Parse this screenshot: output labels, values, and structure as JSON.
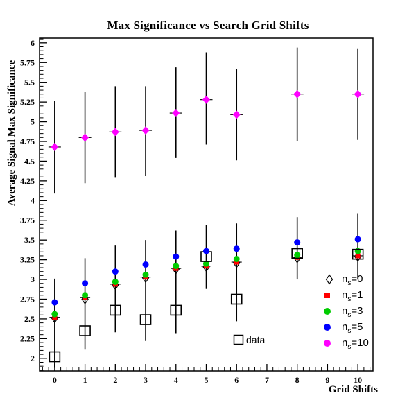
{
  "chart_data": {
    "type": "scatter",
    "title": "Max Significance vs Search Grid Shifts",
    "xlabel": "Grid Shifts",
    "ylabel": "Average Signal Max Significance",
    "xlim": [
      -0.5,
      10.5
    ],
    "ylim": [
      1.84,
      6.06
    ],
    "x_major_ticks": [
      0,
      1,
      2,
      3,
      4,
      5,
      6,
      7,
      8,
      9,
      10
    ],
    "x_minor_step": 0.2,
    "y_major_min": 2,
    "y_major_max": 6,
    "y_major_step": 0.25,
    "y_minor_step": 0.05,
    "grid": false,
    "legend_position": "right-middle",
    "x": [
      0,
      1,
      2,
      3,
      4,
      5,
      6,
      8,
      10
    ],
    "series": [
      {
        "name": "ns0",
        "legend": {
          "prefix": "n",
          "sub": "s",
          "suffix": "=0"
        },
        "marker": "open-diamond",
        "color": "#000000",
        "values": [
          2.51,
          2.75,
          2.93,
          3.02,
          3.13,
          3.16,
          3.21,
          3.27,
          3.29
        ]
      },
      {
        "name": "ns1",
        "legend": {
          "prefix": "n",
          "sub": "s",
          "suffix": "=1"
        },
        "marker": "square",
        "color": "#ff0000",
        "values": [
          2.52,
          2.77,
          2.94,
          3.03,
          3.14,
          3.17,
          3.22,
          3.28,
          3.3
        ]
      },
      {
        "name": "ns3",
        "legend": {
          "prefix": "n",
          "sub": "s",
          "suffix": "=3"
        },
        "marker": "circle",
        "color": "#00cc00",
        "values": [
          2.56,
          2.8,
          2.97,
          3.06,
          3.17,
          3.2,
          3.26,
          3.31,
          3.36
        ]
      },
      {
        "name": "ns5",
        "legend": {
          "prefix": "n",
          "sub": "s",
          "suffix": "=5"
        },
        "marker": "circle",
        "color": "#0000ff",
        "values": [
          2.71,
          2.95,
          3.1,
          3.19,
          3.29,
          3.36,
          3.39,
          3.47,
          3.51
        ]
      },
      {
        "name": "ns10",
        "legend": {
          "prefix": "n",
          "sub": "s",
          "suffix": "=10"
        },
        "marker": "diamond",
        "color": "#ff00ff",
        "values": [
          4.68,
          4.8,
          4.87,
          4.89,
          5.11,
          5.28,
          5.09,
          5.35,
          5.35
        ],
        "err_top": [
          5.26,
          5.38,
          5.45,
          5.45,
          5.69,
          5.88,
          5.67,
          5.94,
          5.93
        ],
        "err_bottom": [
          4.09,
          4.22,
          4.29,
          4.31,
          4.54,
          4.71,
          4.51,
          4.75,
          4.77
        ]
      },
      {
        "name": "data",
        "legend_text": "data",
        "marker": "open-square",
        "color": "#000000",
        "values": [
          2.02,
          2.35,
          2.61,
          2.49,
          2.61,
          3.29,
          2.75,
          3.33,
          3.32
        ]
      }
    ],
    "cluster_error": {
      "top": [
        3.01,
        3.27,
        3.43,
        3.5,
        3.62,
        3.69,
        3.71,
        3.79,
        3.84
      ],
      "bottom": [
        1.88,
        2.11,
        2.33,
        2.22,
        2.31,
        2.88,
        2.47,
        3.0,
        3.0
      ]
    }
  }
}
